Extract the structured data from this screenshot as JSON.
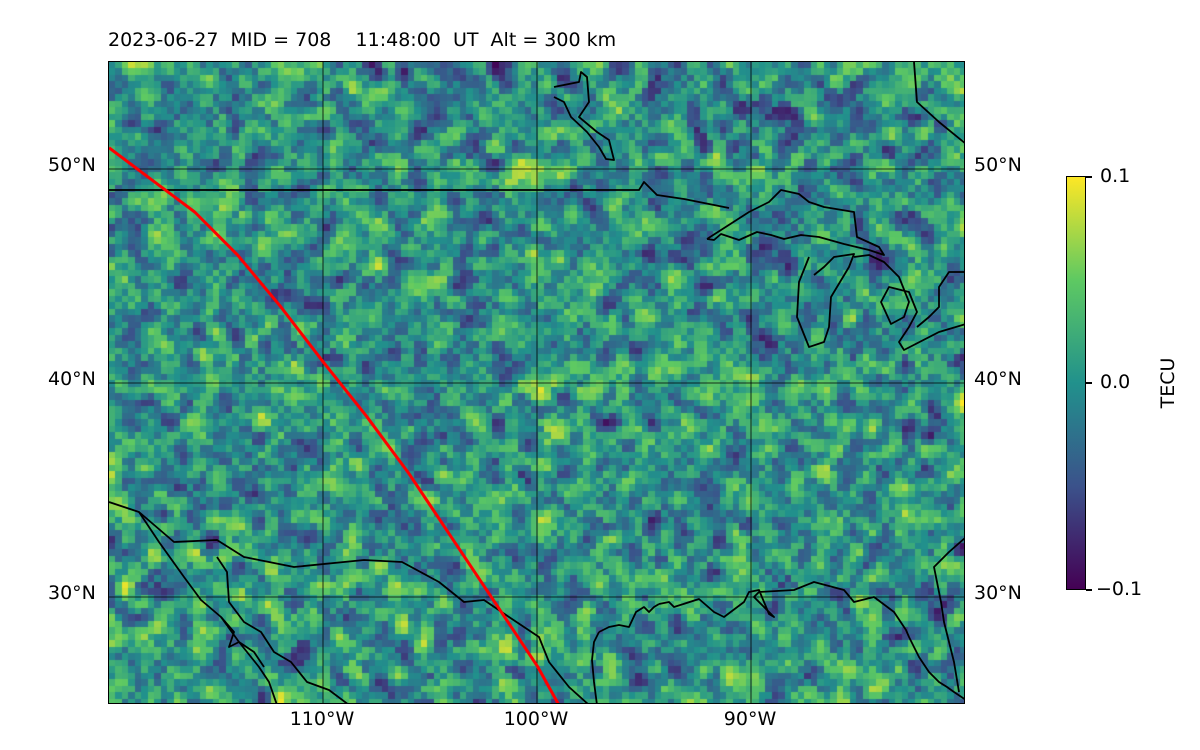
{
  "title": "2023-06-27  MID = 708    11:48:00  UT  Alt = 300 km",
  "map": {
    "lat_labels": [
      "50°N",
      "40°N",
      "30°N"
    ],
    "lon_labels": [
      "110°W",
      "100°W",
      "90°W"
    ],
    "lon_range": [
      -120,
      -80
    ],
    "lat_range": [
      25,
      55
    ],
    "gridlines": true,
    "field": "TEC perturbation",
    "colormap": "viridis",
    "track_color": "#ff0000",
    "track": [
      [
        -120,
        51
      ],
      [
        -118,
        49.5
      ],
      [
        -116,
        48
      ],
      [
        -114,
        46
      ],
      [
        -112,
        43.6
      ],
      [
        -110,
        41
      ],
      [
        -108,
        38.5
      ],
      [
        -106,
        35.8
      ],
      [
        -104,
        32.8
      ],
      [
        -102,
        29.8
      ],
      [
        -100,
        26.8
      ],
      [
        -99,
        25
      ]
    ]
  },
  "colorbar": {
    "label": "TECU",
    "ticks": [
      "0.1",
      "0.0",
      "−0.1"
    ],
    "range": [
      -0.1,
      0.1
    ]
  }
}
